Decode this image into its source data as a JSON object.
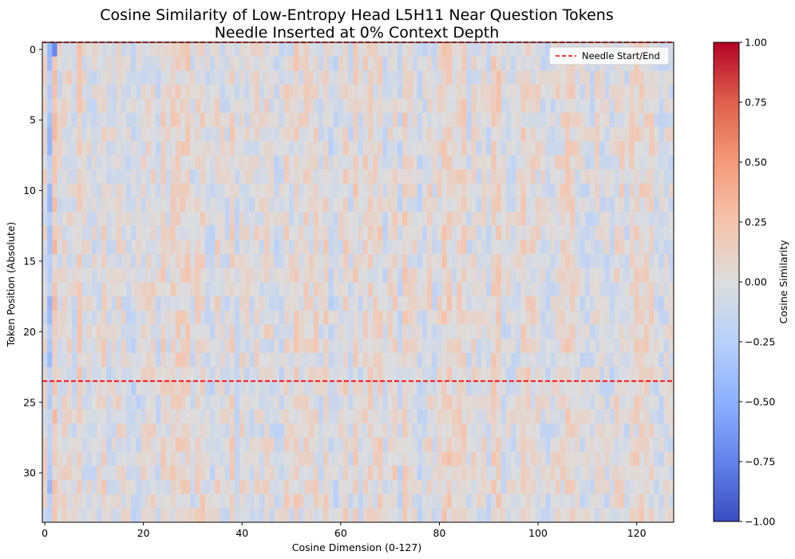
{
  "chart_data": {
    "type": "heatmap",
    "title_line1": "Cosine Similarity of Low-Entropy Head L5H11 Near Question Tokens",
    "title_line2": "Needle Inserted at 0% Context Depth",
    "xlabel": "Cosine Dimension (0-127)",
    "ylabel": "Token Position (Absolute)",
    "n_cols": 128,
    "n_rows": 34,
    "xlim": [
      -0.5,
      127.5
    ],
    "ylim": [
      33.5,
      -0.5
    ],
    "x_ticks": [
      0,
      20,
      40,
      60,
      80,
      100,
      120
    ],
    "y_ticks": [
      0,
      5,
      10,
      15,
      20,
      25,
      30
    ],
    "x_tick_labels": [
      "0",
      "20",
      "40",
      "60",
      "80",
      "100",
      "120"
    ],
    "y_tick_labels": [
      "0",
      "5",
      "10",
      "15",
      "20",
      "25",
      "30"
    ],
    "colorbar": {
      "label": "Cosine Similarity",
      "vmin": -1.0,
      "vmax": 1.0,
      "ticks": [
        1.0,
        0.75,
        0.5,
        0.25,
        0.0,
        -0.25,
        -0.5,
        -0.75,
        -1.0
      ],
      "tick_labels": [
        "1.00",
        "0.75",
        "0.50",
        "0.25",
        "0.00",
        "−0.25",
        "−0.50",
        "−0.75",
        "−1.00"
      ],
      "colormap": "coolwarm"
    },
    "needle_lines": [
      {
        "position": -0.5,
        "label": "Needle Start/End"
      },
      {
        "position": 23.5,
        "label": "Needle Start/End"
      }
    ],
    "legend": {
      "label": "Needle Start/End",
      "placement": "top-right",
      "line_color": "#ff0000",
      "line_style": "dashed"
    },
    "value_summary": {
      "typical_range": [
        -0.3,
        0.3
      ],
      "column_1_mean": -0.3,
      "column_2_mean": 0.18,
      "cell_row0_col2": -0.72,
      "cell_row0_col1": -0.45
    }
  }
}
